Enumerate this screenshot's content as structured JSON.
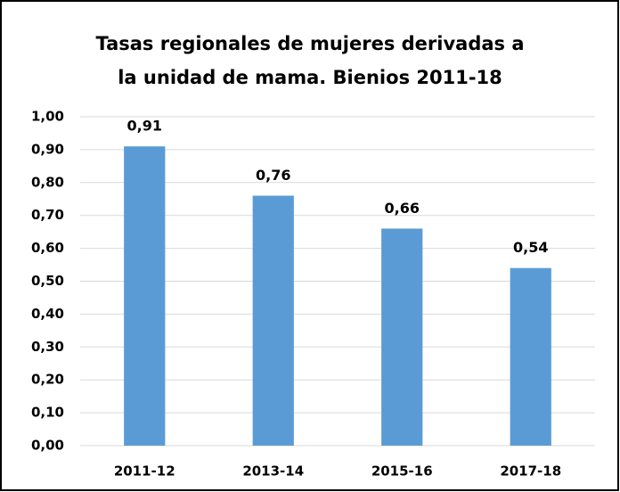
{
  "chart_data": {
    "type": "bar",
    "title": "Tasas regionales de mujeres derivadas a la unidad de mama. Bienios 2011-18",
    "categories": [
      "2011-12",
      "2013-14",
      "2015-16",
      "2017-18"
    ],
    "values": [
      0.91,
      0.76,
      0.66,
      0.54
    ],
    "value_labels": [
      "0,91",
      "0,76",
      "0,66",
      "0,54"
    ],
    "color": "#5b9bd5",
    "ylim": [
      0,
      1
    ],
    "yticks": [
      {
        "value": 0,
        "label": "0,00"
      },
      {
        "value": 0.1,
        "label": "0,10"
      },
      {
        "value": 0.2,
        "label": "0,20"
      },
      {
        "value": 0.3,
        "label": "0,30"
      },
      {
        "value": 0.4,
        "label": "0,40"
      },
      {
        "value": 0.5,
        "label": "0,50"
      },
      {
        "value": 0.6,
        "label": "0,60"
      },
      {
        "value": 0.7,
        "label": "0,70"
      },
      {
        "value": 0.8,
        "label": "0,80"
      },
      {
        "value": 0.9,
        "label": "0,90"
      },
      {
        "value": 1,
        "label": "1,00"
      }
    ],
    "grid": true
  }
}
